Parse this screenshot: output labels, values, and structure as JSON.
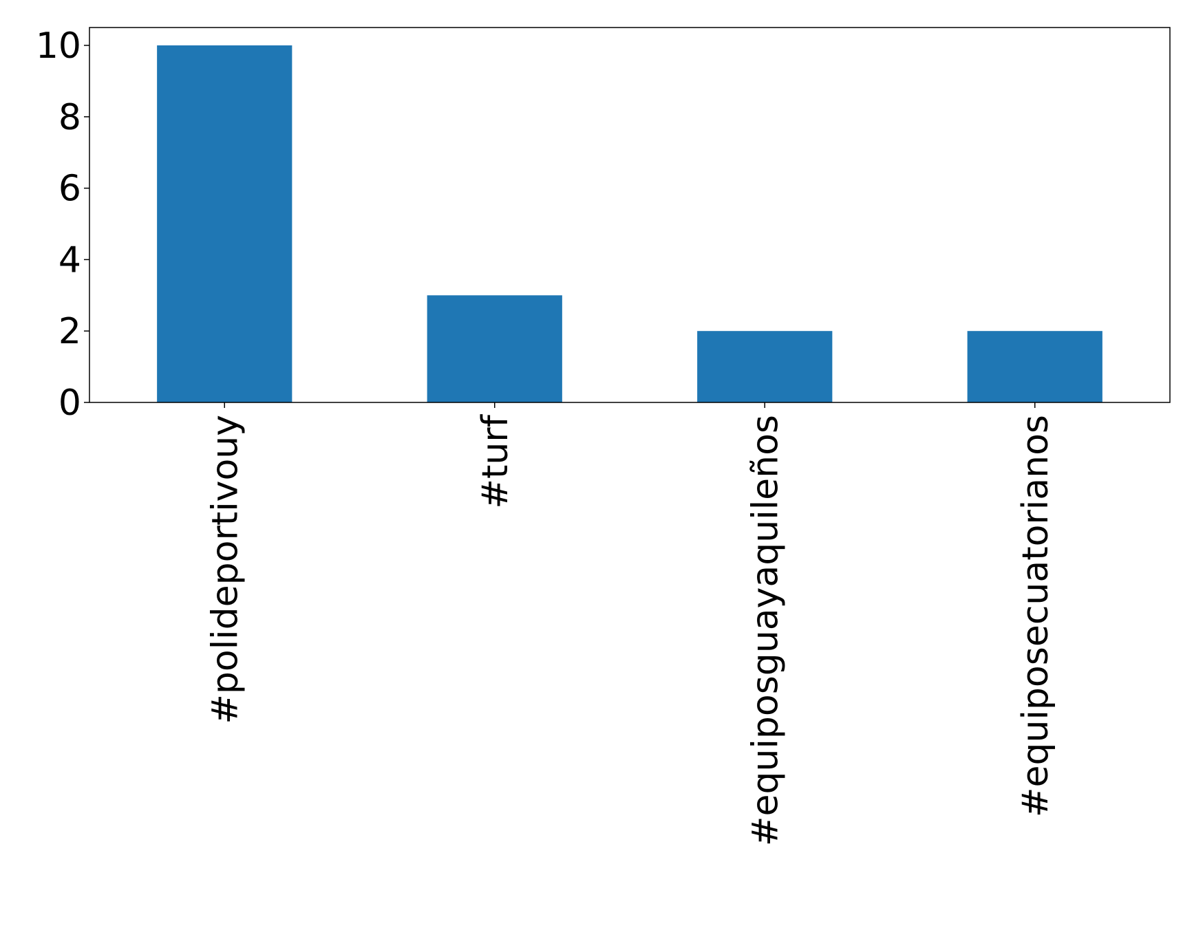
{
  "chart_data": {
    "type": "bar",
    "categories": [
      "#polideportivouy",
      "#turf",
      "#equiposguayaquileños",
      "#equiposecuatorianos"
    ],
    "values": [
      10,
      3,
      2,
      2
    ],
    "title": "",
    "xlabel": "",
    "ylabel": "",
    "ylim": [
      0,
      10.5
    ],
    "yticks": [
      "0",
      "2",
      "4",
      "6",
      "8",
      "10"
    ],
    "bar_color": "#1f77b4",
    "grid": false,
    "legend": "none"
  }
}
